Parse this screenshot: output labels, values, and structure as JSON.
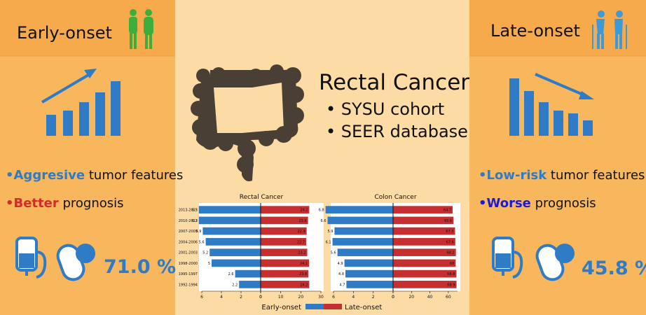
{
  "left": {
    "heading": "Early-onset",
    "feature_highlight": "•Aggresive",
    "feature_rest": "tumor features",
    "prognosis_highlight": "•Better",
    "prognosis_rest": "prognosis",
    "survival": "71.0 %"
  },
  "right": {
    "heading": "Late-onset",
    "feature_highlight": "•Low-risk",
    "feature_rest": "tumor features",
    "prognosis_highlight": "•Worse",
    "prognosis_rest": "prognosis",
    "survival": "45.8 %"
  },
  "center": {
    "title": "Rectal Cancer",
    "bullets": [
      "• SYSU cohort",
      "• SEER database"
    ]
  },
  "chart_data": [
    {
      "type": "butterfly",
      "title": "Rectal Cancer",
      "categories": [
        "2013-2015",
        "2010-2012",
        "2007-2009",
        "2004-2006",
        "2001-2003",
        "1998-2000",
        "1995-1997",
        "1992-1994"
      ],
      "series": [
        {
          "name": "Early-onset",
          "color": "#2f7bc6",
          "values": [
            6.3,
            6.3,
            5.9,
            5.6,
            5.2,
            5.0,
            2.6,
            2.2
          ]
        },
        {
          "name": "Late-onset",
          "color": "#c62f2f",
          "values": [
            24.2,
            23.6,
            22.9,
            22.7,
            23.2,
            24.1,
            23.8,
            24.2
          ]
        }
      ],
      "left_xlim": [
        0,
        6
      ],
      "left_xticks": [
        6,
        4,
        2,
        0
      ],
      "right_xlim": [
        0,
        30
      ],
      "right_xticks": [
        0,
        10,
        20,
        30
      ]
    },
    {
      "type": "butterfly",
      "title": "Colon Cancer",
      "series": [
        {
          "color": "#2f7bc6",
          "values": [
            6.8,
            6.6,
            5.9,
            6.1,
            5.6,
            4.9,
            4.8,
            4.7
          ]
        },
        {
          "color": "#c62f2f",
          "values": [
            64.7,
            65.6,
            67.3,
            67.6,
            68.2,
            68.0,
            68.8,
            68.9
          ]
        }
      ],
      "left_xlim": [
        0,
        6
      ],
      "left_xticks": [
        6,
        4,
        2,
        0
      ],
      "right_xlim": [
        0,
        70
      ],
      "right_xticks": [
        0,
        20,
        40,
        60
      ]
    }
  ]
}
